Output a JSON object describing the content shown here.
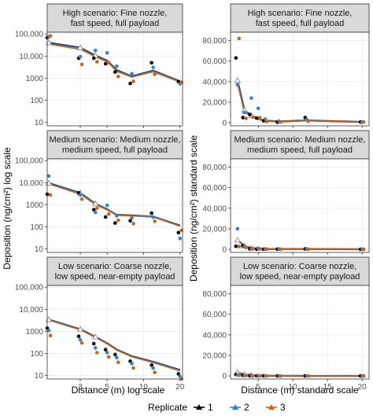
{
  "y_axis_title": "Deposition (ng/cm²)",
  "left_y_suffix": "log scale",
  "right_y_suffix": "standard scale",
  "left_x_title": "Distance (m) log scale",
  "right_x_title": "Distance (m) standard scale",
  "legend": {
    "title": "Replicate",
    "items": [
      {
        "label": "1",
        "color": "#000000"
      },
      {
        "label": "2",
        "color": "#2b83d6"
      },
      {
        "label": "3",
        "color": "#c8641e"
      }
    ]
  },
  "colors": {
    "panel_bg": "#ffffff",
    "strip_bg": "#d9d9d9",
    "grid": "#ebebeb",
    "border": "#333333",
    "mean_line_1": "#333333",
    "mean_line_2": "#4f86c6",
    "mean_line_3": "#c8641e"
  },
  "chart_data": [
    {
      "type": "scatter",
      "panel": "left",
      "strip": [
        "High scenario: Fine nozzle,",
        "fast speed, full payload"
      ],
      "scale": "log",
      "xlim": [
        1.6,
        21
      ],
      "ylim": [
        7,
        120000
      ],
      "y_ticks": [
        10,
        100,
        1000,
        10000,
        100000
      ],
      "y_tick_labels": [
        "10",
        "100",
        "1000",
        "10,000",
        "100,000"
      ],
      "x_ticks": [
        3,
        5,
        10,
        20
      ],
      "x_tick_labels": [
        "",
        "",
        "",
        ""
      ],
      "series": [
        {
          "name": "1",
          "x": [
            1.65,
            3,
            4,
            5,
            6,
            8,
            12,
            20
          ],
          "y": [
            68000,
            8000,
            8000,
            4500,
            1900,
            580,
            5000,
            700
          ]
        },
        {
          "name": "2",
          "x": [
            1.65,
            3,
            4,
            5,
            6,
            8,
            12,
            20
          ],
          "y": [
            75000,
            9500,
            18000,
            14000,
            3500,
            1600,
            3100,
            560
          ]
        },
        {
          "name": "3",
          "x": [
            1.65,
            3,
            4,
            5,
            6,
            8,
            12,
            20
          ],
          "y": [
            82000,
            4200,
            5500,
            5000,
            1200,
            720,
            1500,
            650
          ]
        }
      ],
      "mean_lines": [
        {
          "name": "1",
          "x": [
            1.65,
            3,
            4,
            5,
            6,
            8,
            12,
            20
          ],
          "y": [
            40000,
            24000,
            10500,
            6200,
            2300,
            1200,
            2200,
            720
          ]
        },
        {
          "name": "2",
          "x": [
            1.65,
            3,
            4,
            5,
            6,
            8,
            12,
            20
          ],
          "y": [
            36000,
            22000,
            9500,
            5800,
            2100,
            1150,
            2050,
            690
          ]
        },
        {
          "name": "3",
          "x": [
            1.65,
            3,
            4,
            5,
            6,
            8,
            12,
            20
          ],
          "y": [
            34000,
            20000,
            9000,
            5500,
            2000,
            1100,
            1900,
            660
          ]
        }
      ]
    },
    {
      "type": "scatter",
      "panel": "right",
      "strip": [
        "High scenario: Fine nozzle,",
        "fast speed, full payload"
      ],
      "scale": "linear",
      "xlim": [
        1,
        21
      ],
      "ylim": [
        -3000,
        88000
      ],
      "y_ticks": [
        0,
        20000,
        40000,
        60000,
        80000
      ],
      "y_tick_labels": [
        "0",
        "20,000",
        "40,000",
        "60,000",
        "80,000"
      ],
      "x_ticks": [
        5,
        10,
        15,
        20
      ],
      "x_tick_labels": [
        "",
        "",
        "",
        ""
      ],
      "series": [
        {
          "name": "1",
          "x": [
            2,
            3,
            4,
            5,
            6,
            8,
            12,
            20
          ],
          "y": [
            63000,
            5000,
            8000,
            4500,
            1900,
            580,
            5000,
            700
          ]
        },
        {
          "name": "2",
          "x": [
            2,
            3,
            4,
            5,
            6,
            8,
            12,
            20
          ],
          "y": [
            37000,
            10000,
            24000,
            14000,
            3500,
            1600,
            3100,
            560
          ]
        },
        {
          "name": "3",
          "x": [
            2,
            3,
            4,
            5,
            6,
            8,
            12,
            20
          ],
          "y": [
            82000,
            4200,
            5500,
            5000,
            1200,
            720,
            1500,
            650
          ]
        }
      ],
      "mean_lines": [
        {
          "name": "1",
          "x": [
            2,
            3,
            4,
            5,
            6,
            8,
            12,
            20
          ],
          "y": [
            41000,
            12000,
            7000,
            3500,
            2000,
            1200,
            2200,
            720
          ]
        },
        {
          "name": "2",
          "x": [
            2,
            3,
            4,
            5,
            6,
            8,
            12,
            20
          ],
          "y": [
            39000,
            11000,
            6500,
            3300,
            1900,
            1150,
            2050,
            690
          ]
        },
        {
          "name": "3",
          "x": [
            2,
            3,
            4,
            5,
            6,
            8,
            12,
            20
          ],
          "y": [
            37000,
            10000,
            6000,
            3100,
            1800,
            1100,
            1900,
            660
          ]
        }
      ]
    },
    {
      "type": "scatter",
      "panel": "left",
      "strip": [
        "Medium scenario: Medium nozzle,",
        "medium speed, full payload"
      ],
      "scale": "log",
      "xlim": [
        1.6,
        21
      ],
      "ylim": [
        7,
        120000
      ],
      "y_ticks": [
        10,
        100,
        1000,
        10000,
        100000
      ],
      "y_tick_labels": [
        "10",
        "100",
        "1000",
        "10,000",
        "100,000"
      ],
      "x_ticks": [
        3,
        5,
        10,
        20
      ],
      "x_tick_labels": [
        "",
        "",
        "",
        ""
      ],
      "series": [
        {
          "name": "1",
          "x": [
            1.65,
            3,
            4,
            5,
            6,
            8,
            12,
            20
          ],
          "y": [
            3000,
            3500,
            600,
            280,
            150,
            190,
            420,
            55
          ]
        },
        {
          "name": "2",
          "x": [
            1.65,
            3,
            4,
            5,
            6,
            8,
            12,
            20
          ],
          "y": [
            20000,
            2800,
            450,
            950,
            320,
            260,
            280,
            30
          ]
        },
        {
          "name": "3",
          "x": [
            1.65,
            3,
            4,
            5,
            6,
            8,
            12,
            20
          ],
          "y": [
            2800,
            1800,
            700,
            380,
            200,
            140,
            180,
            70
          ]
        }
      ],
      "mean_lines": [
        {
          "name": "1",
          "x": [
            1.65,
            3,
            4,
            5,
            6,
            8,
            12,
            20
          ],
          "y": [
            9500,
            3400,
            1100,
            620,
            350,
            330,
            290,
            115
          ]
        },
        {
          "name": "2",
          "x": [
            1.65,
            3,
            4,
            5,
            6,
            8,
            12,
            20
          ],
          "y": [
            9000,
            3200,
            1050,
            600,
            340,
            320,
            285,
            110
          ]
        },
        {
          "name": "3",
          "x": [
            1.65,
            3,
            4,
            5,
            6,
            8,
            12,
            20
          ],
          "y": [
            8600,
            3000,
            1000,
            580,
            330,
            310,
            280,
            105
          ]
        }
      ]
    },
    {
      "type": "scatter",
      "panel": "right",
      "strip": [
        "Medium scenario: Medium nozzle,",
        "medium speed, full payload"
      ],
      "scale": "linear",
      "xlim": [
        1,
        21
      ],
      "ylim": [
        -3000,
        88000
      ],
      "y_ticks": [
        0,
        20000,
        40000,
        60000,
        80000
      ],
      "y_tick_labels": [
        "0",
        "20,000",
        "40,000",
        "60,000",
        "80,000"
      ],
      "x_ticks": [
        5,
        10,
        15,
        20
      ],
      "x_tick_labels": [
        "",
        "",
        "",
        ""
      ],
      "series": [
        {
          "name": "1",
          "x": [
            2,
            3,
            4,
            5,
            6,
            8,
            12,
            20
          ],
          "y": [
            3000,
            3500,
            600,
            280,
            150,
            190,
            420,
            55
          ]
        },
        {
          "name": "2",
          "x": [
            2,
            3,
            4,
            5,
            6,
            8,
            12,
            20
          ],
          "y": [
            20000,
            2800,
            450,
            950,
            320,
            260,
            280,
            30
          ]
        },
        {
          "name": "3",
          "x": [
            2,
            3,
            4,
            5,
            6,
            8,
            12,
            20
          ],
          "y": [
            2800,
            1800,
            700,
            380,
            200,
            140,
            180,
            70
          ]
        }
      ],
      "mean_lines": [
        {
          "name": "1",
          "x": [
            2,
            3,
            4,
            5,
            6,
            8,
            12,
            20
          ],
          "y": [
            9000,
            3300,
            1100,
            620,
            350,
            330,
            290,
            115
          ]
        },
        {
          "name": "2",
          "x": [
            2,
            3,
            4,
            5,
            6,
            8,
            12,
            20
          ],
          "y": [
            8700,
            3100,
            1050,
            600,
            340,
            320,
            285,
            110
          ]
        },
        {
          "name": "3",
          "x": [
            2,
            3,
            4,
            5,
            6,
            8,
            12,
            20
          ],
          "y": [
            8400,
            2900,
            1000,
            580,
            330,
            310,
            280,
            105
          ]
        }
      ]
    },
    {
      "type": "scatter",
      "panel": "left",
      "strip": [
        "Low scenario: Coarse nozzle,",
        "low speed, near-empty payload"
      ],
      "scale": "log",
      "xlim": [
        1.6,
        21
      ],
      "ylim": [
        7,
        120000
      ],
      "y_ticks": [
        10,
        100,
        1000,
        10000,
        100000
      ],
      "y_tick_labels": [
        "10",
        "100",
        "1000",
        "10,000",
        "100,000"
      ],
      "x_ticks": [
        3,
        5,
        10,
        20
      ],
      "x_tick_labels": [
        "3",
        "5",
        "10",
        "20"
      ],
      "series": [
        {
          "name": "1",
          "x": [
            1.65,
            3,
            4,
            5,
            6,
            8,
            12,
            20
          ],
          "y": [
            1400,
            600,
            280,
            150,
            90,
            45,
            30,
            12
          ]
        },
        {
          "name": "2",
          "x": [
            1.65,
            3,
            4,
            5,
            6,
            8,
            12,
            20
          ],
          "y": [
            1100,
            420,
            180,
            110,
            65,
            35,
            22,
            9
          ]
        },
        {
          "name": "3",
          "x": [
            1.65,
            3,
            4,
            5,
            6,
            8,
            12,
            20
          ],
          "y": [
            650,
            300,
            110,
            70,
            40,
            22,
            14,
            7
          ]
        }
      ],
      "mean_lines": [
        {
          "name": "1",
          "x": [
            1.65,
            3,
            4,
            5,
            6,
            8,
            12,
            20
          ],
          "y": [
            3400,
            1250,
            560,
            290,
            150,
            75,
            42,
            18
          ]
        },
        {
          "name": "2",
          "x": [
            1.65,
            3,
            4,
            5,
            6,
            8,
            12,
            20
          ],
          "y": [
            3300,
            1200,
            540,
            280,
            145,
            72,
            40,
            17
          ]
        },
        {
          "name": "3",
          "x": [
            1.65,
            3,
            4,
            5,
            6,
            8,
            12,
            20
          ],
          "y": [
            3200,
            1150,
            520,
            270,
            140,
            70,
            38,
            16
          ]
        }
      ]
    },
    {
      "type": "scatter",
      "panel": "right",
      "strip": [
        "Low scenario: Coarse nozzle,",
        "low speed, near-empty payload"
      ],
      "scale": "linear",
      "xlim": [
        1,
        21
      ],
      "ylim": [
        -3000,
        88000
      ],
      "y_ticks": [
        0,
        20000,
        40000,
        60000,
        80000
      ],
      "y_tick_labels": [
        "0",
        "20,000",
        "40,000",
        "60,000",
        "80,000"
      ],
      "x_ticks": [
        5,
        10,
        15,
        20
      ],
      "x_tick_labels": [
        "5",
        "10",
        "15",
        "20"
      ],
      "series": [
        {
          "name": "1",
          "x": [
            2,
            3,
            4,
            5,
            6,
            8,
            12,
            20
          ],
          "y": [
            1400,
            600,
            280,
            150,
            90,
            45,
            30,
            12
          ]
        },
        {
          "name": "2",
          "x": [
            2,
            3,
            4,
            5,
            6,
            8,
            12,
            20
          ],
          "y": [
            1100,
            420,
            180,
            110,
            65,
            35,
            22,
            9
          ]
        },
        {
          "name": "3",
          "x": [
            2,
            3,
            4,
            5,
            6,
            8,
            12,
            20
          ],
          "y": [
            650,
            300,
            110,
            70,
            40,
            22,
            14,
            7
          ]
        }
      ],
      "mean_lines": [
        {
          "name": "1",
          "x": [
            2,
            3,
            4,
            5,
            6,
            8,
            12,
            20
          ],
          "y": [
            3400,
            1250,
            560,
            290,
            150,
            75,
            42,
            18
          ]
        },
        {
          "name": "2",
          "x": [
            2,
            3,
            4,
            5,
            6,
            8,
            12,
            20
          ],
          "y": [
            3300,
            1200,
            540,
            280,
            145,
            72,
            40,
            17
          ]
        },
        {
          "name": "3",
          "x": [
            2,
            3,
            4,
            5,
            6,
            8,
            12,
            20
          ],
          "y": [
            3200,
            1150,
            520,
            270,
            140,
            70,
            38,
            16
          ]
        }
      ]
    }
  ]
}
